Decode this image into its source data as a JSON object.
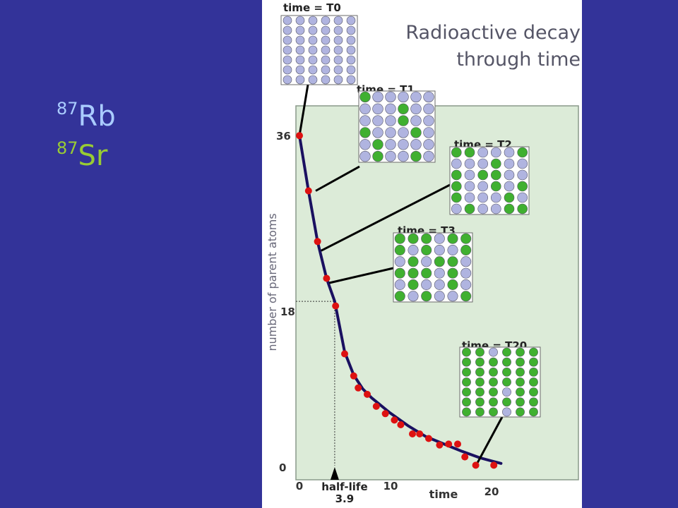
{
  "isotopes": [
    {
      "mass": "87",
      "symbol": "Rb",
      "color": "#aaccff"
    },
    {
      "mass": "87",
      "symbol": "Sr",
      "color": "#99cc33"
    }
  ],
  "colors": {
    "background": "#333399",
    "panel": "#ffffff",
    "plot_area": "#dcebd8",
    "curve": "#1a1060",
    "points": "#dd1111",
    "parent_atom": "#b0b4e0",
    "daughter_atom": "#40b030"
  },
  "chart_data": {
    "type": "scatter",
    "title_lines": [
      "Radioactive decay",
      "through time"
    ],
    "xlabel": "time",
    "ylabel": "number of parent atoms",
    "xlim": [
      0,
      22.6
    ],
    "ylim": [
      0,
      37.2
    ],
    "x_ticks": [
      "0",
      "10",
      "20"
    ],
    "y_ticks": [
      "0",
      "18",
      "36"
    ],
    "half_life": {
      "label": "half-life",
      "value": "3.9",
      "x": 3.9,
      "y": 18
    },
    "points": [
      {
        "x": 0,
        "y": 36
      },
      {
        "x": 1,
        "y": 30
      },
      {
        "x": 2,
        "y": 24.5
      },
      {
        "x": 3,
        "y": 20.5
      },
      {
        "x": 4,
        "y": 17.5
      },
      {
        "x": 5,
        "y": 12.3
      },
      {
        "x": 6,
        "y": 9.9
      },
      {
        "x": 6.5,
        "y": 8.6
      },
      {
        "x": 7.5,
        "y": 7.9
      },
      {
        "x": 8.5,
        "y": 6.6
      },
      {
        "x": 9.5,
        "y": 5.8
      },
      {
        "x": 10.5,
        "y": 5.1
      },
      {
        "x": 11.2,
        "y": 4.6
      },
      {
        "x": 12.5,
        "y": 3.6
      },
      {
        "x": 13.3,
        "y": 3.6
      },
      {
        "x": 14.3,
        "y": 3.1
      },
      {
        "x": 15.5,
        "y": 2.4
      },
      {
        "x": 16.5,
        "y": 2.5
      },
      {
        "x": 17.5,
        "y": 2.5
      },
      {
        "x": 18.3,
        "y": 1.1
      },
      {
        "x": 19.5,
        "y": 0.2
      },
      {
        "x": 21.5,
        "y": 0.2
      }
    ],
    "curve": {
      "x": [
        0,
        1,
        2,
        3,
        3.9,
        5,
        6,
        7,
        8,
        10,
        12,
        14,
        16,
        18,
        20,
        21.5,
        22.3
      ],
      "y": [
        36,
        30,
        24.5,
        20.5,
        18,
        12.5,
        10,
        8.5,
        7.5,
        5.9,
        4.5,
        3.3,
        2.5,
        1.7,
        1.0,
        0.6,
        0.4
      ]
    },
    "snapshots": [
      {
        "label": "time = T0",
        "rows": [
          "PPPPPP",
          "PPPPPP",
          "PPPPPP",
          "PPPPPP",
          "PPPPPP",
          "PPPPPP",
          "PPPPPP"
        ],
        "x": 0,
        "y": 36
      },
      {
        "label": "time = T1",
        "rows": [
          "DPPPPP",
          "PPPDPP",
          "PPPDPP",
          "DPPPDP",
          "PDPPPP",
          "PDPPDP"
        ],
        "x": 1.8,
        "y": 30
      },
      {
        "label": "time = T2",
        "rows": [
          "DDPPPD",
          "PPPDPP",
          "DPDDPP",
          "DPPDPD",
          "DPPPDP",
          "PDPPDD"
        ],
        "x": 2.4,
        "y": 23.5
      },
      {
        "label": "time = T3",
        "rows": [
          "DDDPDD",
          "DPDPPD",
          "PDPDDP",
          "DDDPDP",
          "PDPPDP",
          "DPDPPD"
        ],
        "x": 3.3,
        "y": 20
      },
      {
        "label": "time = T20",
        "rows": [
          "DDPDDD",
          "DDDDDD",
          "DDDDDD",
          "DDDDDD",
          "DDDPDD",
          "DDDDDD",
          "DDDPDD"
        ],
        "x": 19.6,
        "y": 0.3
      }
    ]
  }
}
